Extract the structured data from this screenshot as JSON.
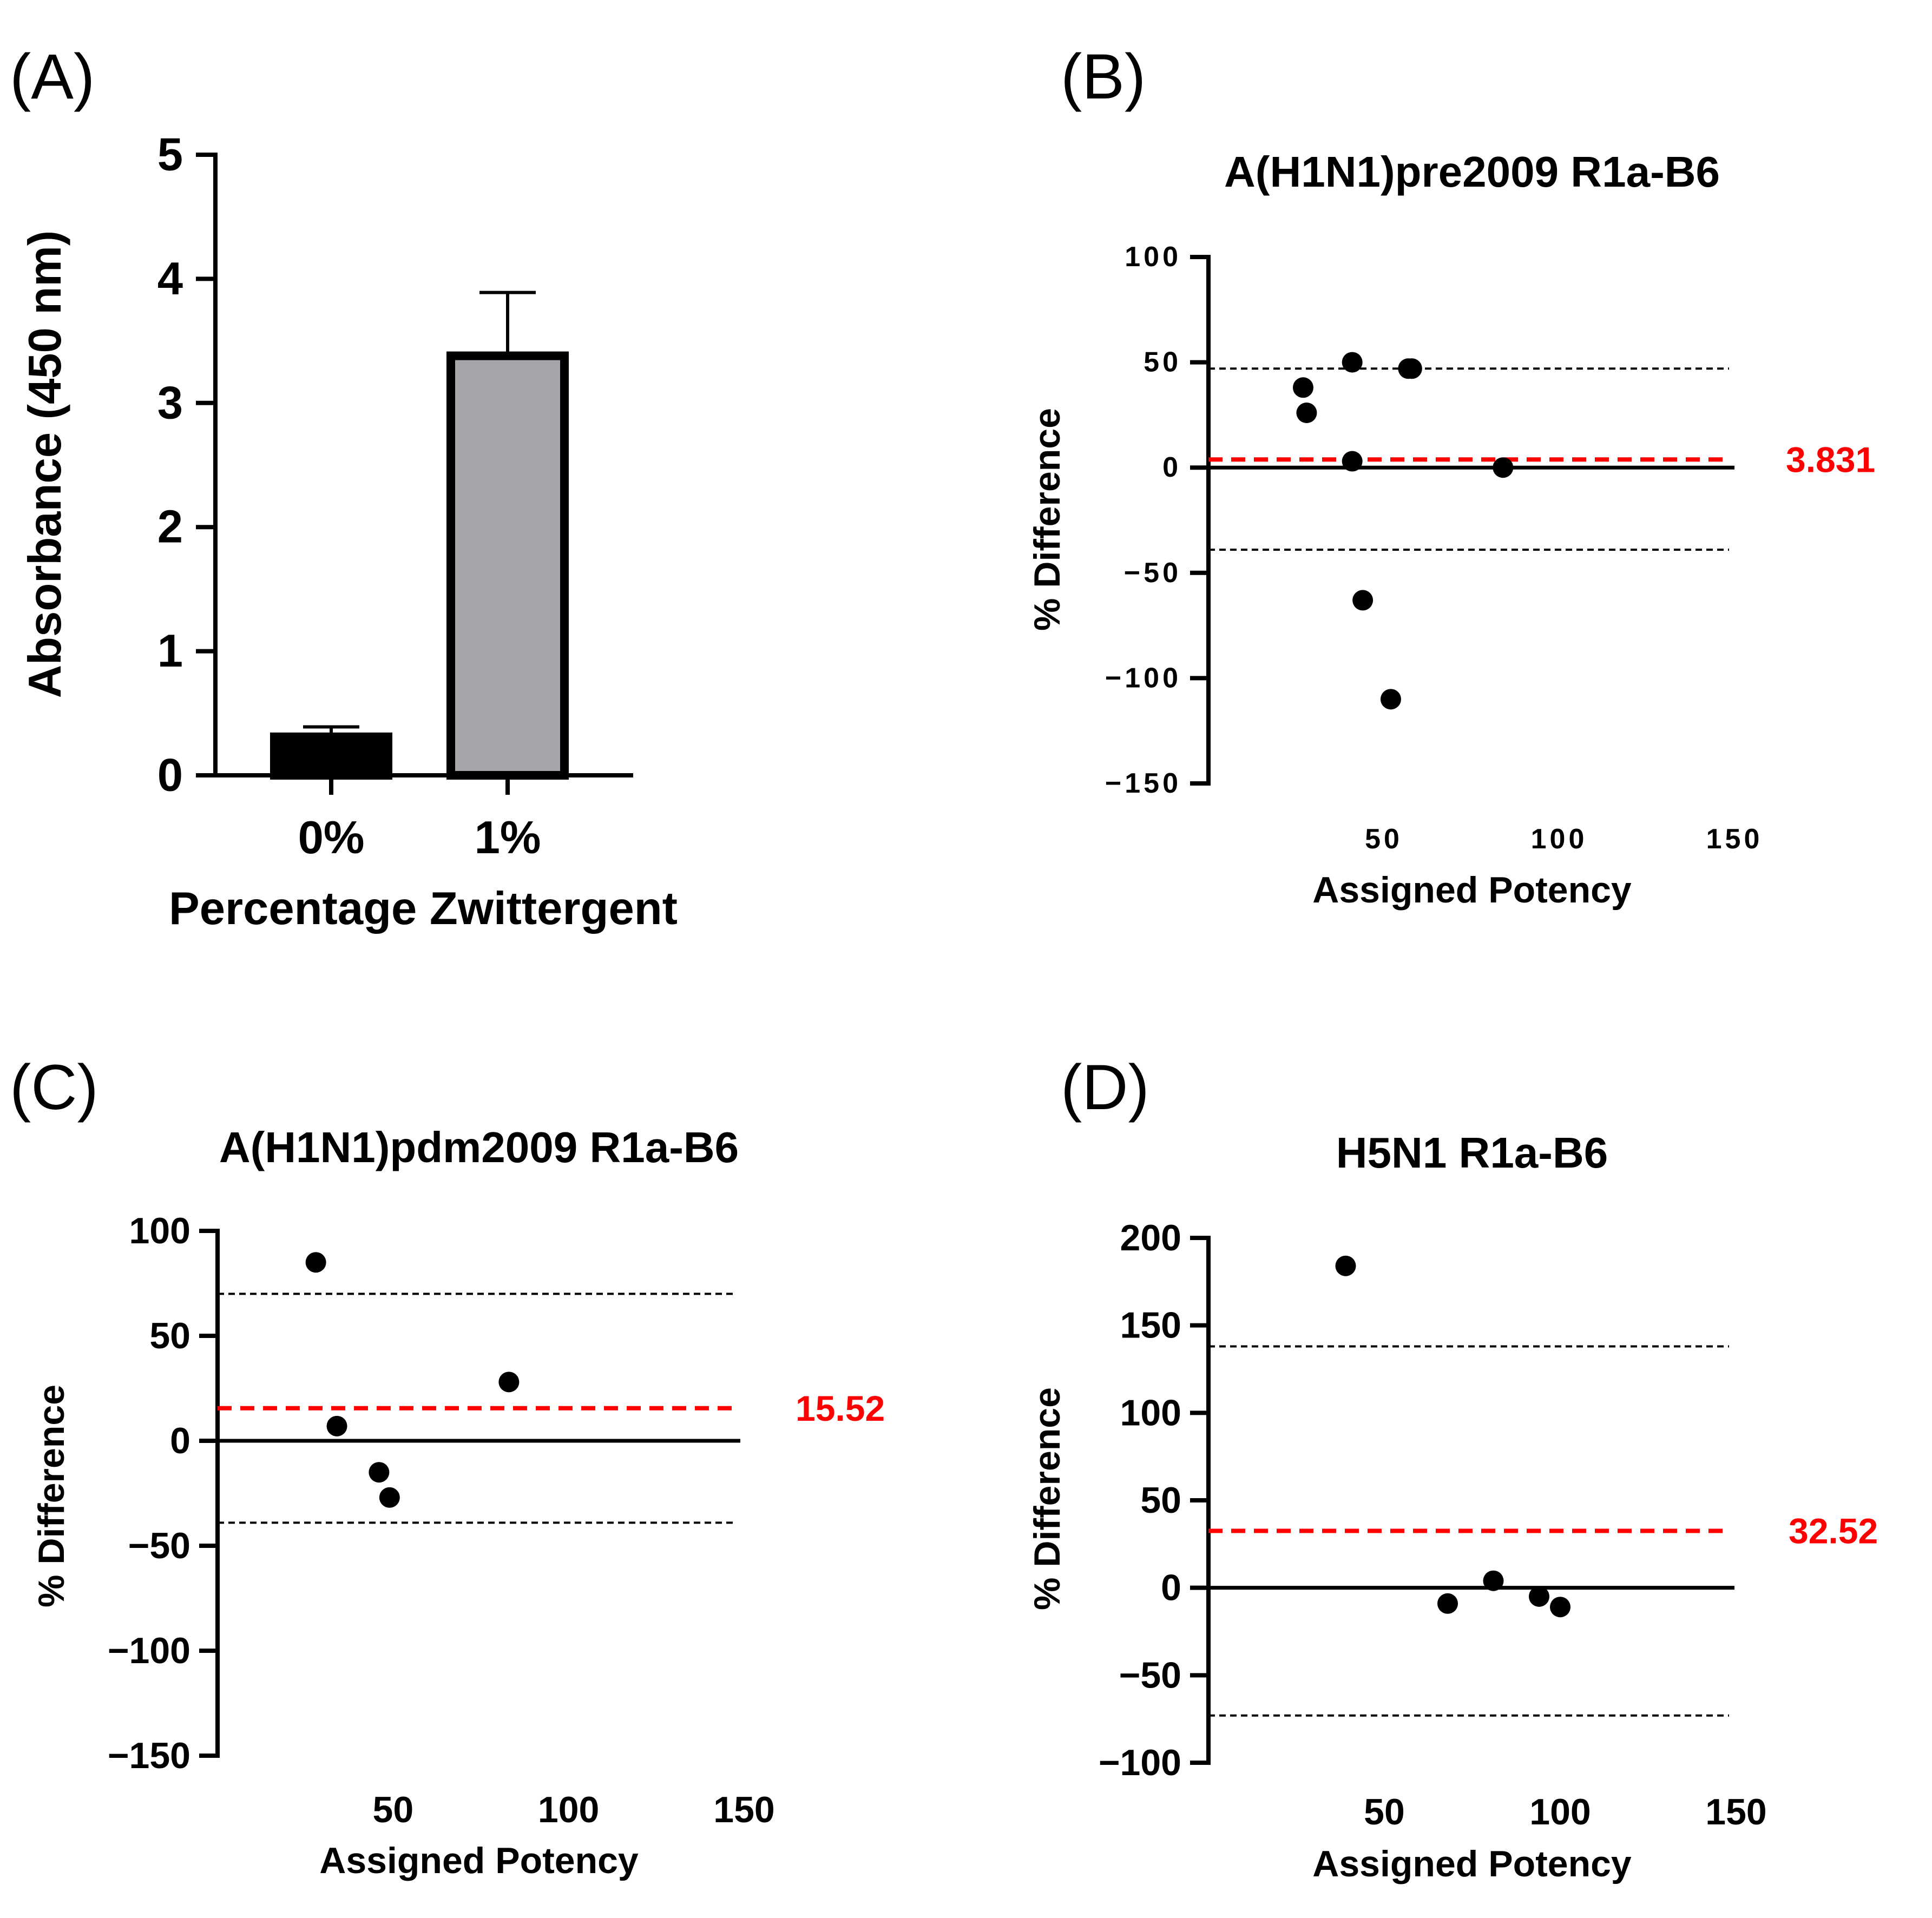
{
  "chart_data": [
    {
      "panel": "(A)",
      "type": "bar",
      "title": "",
      "xlabel": "Percentage Zwittergent",
      "ylabel": "Absorbance (450 nm)",
      "categories": [
        "0%",
        "1%"
      ],
      "values": [
        0.31,
        3.38
      ],
      "errors": [
        0.08,
        0.51
      ],
      "bar_colors": [
        "#000000",
        "#a5a5aa"
      ],
      "ylim": [
        0,
        5
      ],
      "yticks": [
        0,
        1,
        2,
        3,
        4,
        5
      ]
    },
    {
      "panel": "(B)",
      "type": "scatter",
      "title": "A(H1N1)pre2009 R1a-B6",
      "xlabel": "Assigned Potency",
      "ylabel": "% Difference",
      "x": [
        27,
        28,
        41,
        41,
        44,
        52,
        57,
        58,
        84
      ],
      "y": [
        38,
        26,
        50,
        3,
        -63,
        -110,
        47,
        47,
        0
      ],
      "mean_bias": 3.831,
      "mean_label": "3.831",
      "upper_loa": 47,
      "lower_loa": -39,
      "xlim": [
        0,
        150
      ],
      "xticks": [
        50,
        100,
        150
      ],
      "ylim": [
        -150,
        100
      ],
      "yticks": [
        100,
        50,
        0,
        -50,
        -100,
        -150
      ]
    },
    {
      "panel": "(C)",
      "type": "scatter",
      "title": "A(H1N1)pdm2009 R1a-B6",
      "xlabel": "Assigned Potency",
      "ylabel": "% Difference",
      "x": [
        28,
        34,
        46,
        49,
        83
      ],
      "y": [
        85,
        7,
        -15,
        -27,
        28
      ],
      "mean_bias": 15.52,
      "mean_label": "15.52",
      "upper_loa": 70,
      "lower_loa": -39,
      "xlim": [
        0,
        150
      ],
      "xticks": [
        50,
        100,
        150
      ],
      "ylim": [
        -150,
        100
      ],
      "yticks": [
        100,
        50,
        0,
        -50,
        -100,
        -150
      ]
    },
    {
      "panel": "(D)",
      "type": "scatter",
      "title": "H5N1 R1a-B6",
      "xlabel": "Assigned Potency",
      "ylabel": "% Difference",
      "x": [
        39,
        68,
        81,
        94,
        100
      ],
      "y": [
        184,
        -9,
        4,
        -5,
        -11
      ],
      "mean_bias": 32.52,
      "mean_label": "32.52",
      "upper_loa": 138,
      "lower_loa": -73,
      "xlim": [
        0,
        150
      ],
      "xticks": [
        50,
        100,
        150
      ],
      "ylim": [
        -100,
        200
      ],
      "yticks": [
        200,
        150,
        100,
        50,
        0,
        -50,
        -100
      ]
    }
  ]
}
